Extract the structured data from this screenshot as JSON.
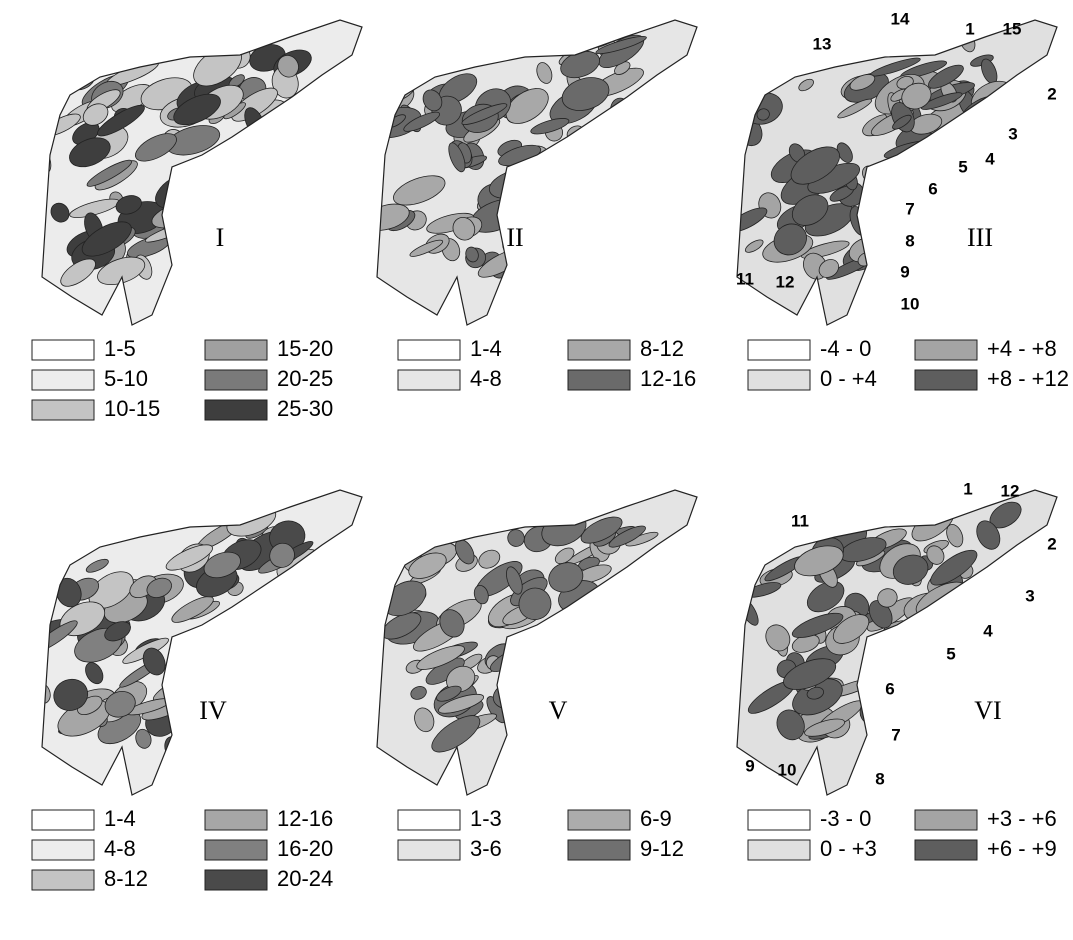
{
  "panels": [
    {
      "label": "I",
      "legend": [
        {
          "text": "1-5",
          "color": "#ffffff"
        },
        {
          "text": "5-10",
          "color": "#ececec"
        },
        {
          "text": "10-15",
          "color": "#c4c4c4"
        },
        {
          "text": "15-20",
          "color": "#a0a0a0"
        },
        {
          "text": "20-25",
          "color": "#7a7a7a"
        },
        {
          "text": "25-30",
          "color": "#3e3e3e"
        }
      ],
      "annotations": []
    },
    {
      "label": "II",
      "legend": [
        {
          "text": "1-4",
          "color": "#ffffff"
        },
        {
          "text": "4-8",
          "color": "#e6e6e6"
        },
        {
          "text": "8-12",
          "color": "#a8a8a8"
        },
        {
          "text": "12-16",
          "color": "#6a6a6a"
        }
      ],
      "annotations": []
    },
    {
      "label": "III",
      "legend": [
        {
          "text": "-4 - 0",
          "color": "#ffffff"
        },
        {
          "text": "0 - +4",
          "color": "#e0e0e0"
        },
        {
          "text": "+4 - +8",
          "color": "#a4a4a4"
        },
        {
          "text": "+8 - +12",
          "color": "#5e5e5e"
        }
      ],
      "annotations": [
        "1",
        "2",
        "3",
        "4",
        "5",
        "6",
        "7",
        "8",
        "9",
        "10",
        "11",
        "12",
        "13",
        "14",
        "15"
      ]
    },
    {
      "label": "IV",
      "legend": [
        {
          "text": "1-4",
          "color": "#ffffff"
        },
        {
          "text": "4-8",
          "color": "#ececec"
        },
        {
          "text": "8-12",
          "color": "#c4c4c4"
        },
        {
          "text": "12-16",
          "color": "#a6a6a6"
        },
        {
          "text": "16-20",
          "color": "#808080"
        },
        {
          "text": "20-24",
          "color": "#4a4a4a"
        }
      ],
      "annotations": []
    },
    {
      "label": "V",
      "legend": [
        {
          "text": "1-3",
          "color": "#ffffff"
        },
        {
          "text": "3-6",
          "color": "#e4e4e4"
        },
        {
          "text": "6-9",
          "color": "#acacac"
        },
        {
          "text": "9-12",
          "color": "#707070"
        }
      ],
      "annotations": []
    },
    {
      "label": "VI",
      "legend": [
        {
          "text": "-3 - 0",
          "color": "#ffffff"
        },
        {
          "text": "0 - +3",
          "color": "#e0e0e0"
        },
        {
          "text": "+3 - +6",
          "color": "#a4a4a4"
        },
        {
          "text": "+6 - +9",
          "color": "#5e5e5e"
        }
      ],
      "annotations": [
        "1",
        "2",
        "3",
        "4",
        "5",
        "6",
        "7",
        "8",
        "9",
        "10",
        "11",
        "12"
      ]
    }
  ]
}
